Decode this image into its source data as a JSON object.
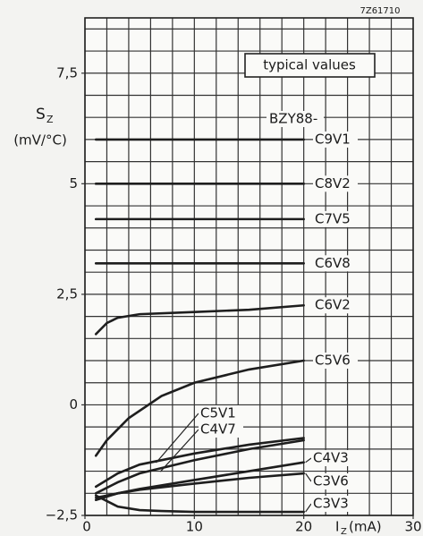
{
  "chart_data": {
    "type": "line",
    "code": "7Z61710",
    "note": "typical values",
    "device": "BZY88-",
    "ylabel": {
      "symbol": "S",
      "subscript": "Z",
      "unit": "(mV/°C)"
    },
    "xlabel": {
      "symbol": "I",
      "subscript": "Z",
      "unit": "(mA)"
    },
    "xlim": [
      0,
      30
    ],
    "ylim": [
      -2.5,
      8.75
    ],
    "xticks": [
      0,
      10,
      20,
      30
    ],
    "yticks": [
      {
        "value": 7.5,
        "label": "7,5"
      },
      5,
      {
        "value": 2.5,
        "label": "2,5"
      },
      0,
      {
        "value": -2.5,
        "label": "−2,5"
      }
    ],
    "grid": true,
    "xgrid": [
      0,
      2,
      4,
      6,
      8,
      10,
      12,
      14,
      16,
      18,
      20,
      22,
      24,
      26,
      28,
      30
    ],
    "ygrid": [
      -2.5,
      -2,
      -1.5,
      -1,
      -0.5,
      0,
      0.5,
      1,
      1.5,
      2,
      2.5,
      3,
      3.5,
      4,
      4.5,
      5,
      5.5,
      6,
      6.5,
      7,
      7.5,
      8,
      8.5
    ],
    "color": "#1e1e1e",
    "series": [
      {
        "name": "C9V1",
        "x": [
          1,
          20
        ],
        "values": [
          6.0,
          6.0
        ]
      },
      {
        "name": "C8V2",
        "x": [
          1,
          20
        ],
        "values": [
          5.0,
          5.0
        ]
      },
      {
        "name": "C7V5",
        "x": [
          1,
          20
        ],
        "values": [
          4.2,
          4.2
        ]
      },
      {
        "name": "C6V8",
        "x": [
          1,
          20
        ],
        "values": [
          3.2,
          3.2
        ]
      },
      {
        "name": "C6V2",
        "x": [
          1,
          2,
          3,
          5,
          10,
          15,
          20
        ],
        "values": [
          1.6,
          1.85,
          1.97,
          2.05,
          2.1,
          2.15,
          2.25
        ]
      },
      {
        "name": "C5V6",
        "x": [
          1,
          2,
          4,
          7,
          10,
          15,
          20
        ],
        "values": [
          -1.15,
          -0.8,
          -0.3,
          0.2,
          0.5,
          0.8,
          1.0
        ]
      },
      {
        "name": "C5V1",
        "x": [
          1,
          3,
          5,
          10,
          15,
          20
        ],
        "values": [
          -1.85,
          -1.55,
          -1.35,
          -1.1,
          -0.9,
          -0.75
        ]
      },
      {
        "name": "C4V7",
        "x": [
          1,
          3,
          5,
          10,
          15,
          20
        ],
        "values": [
          -2.0,
          -1.75,
          -1.55,
          -1.25,
          -1.0,
          -0.8
        ]
      },
      {
        "name": "C4V3",
        "x": [
          1,
          3,
          5,
          10,
          15,
          20
        ],
        "values": [
          -2.15,
          -2.0,
          -1.9,
          -1.7,
          -1.5,
          -1.3
        ]
      },
      {
        "name": "C3V6",
        "x": [
          1,
          3,
          5,
          10,
          15,
          20
        ],
        "values": [
          -2.1,
          -2.0,
          -1.92,
          -1.78,
          -1.65,
          -1.55
        ]
      },
      {
        "name": "C3V3",
        "x": [
          1,
          3,
          5,
          7,
          10,
          20
        ],
        "values": [
          -2.05,
          -2.3,
          -2.38,
          -2.4,
          -2.42,
          -2.42
        ]
      }
    ]
  }
}
